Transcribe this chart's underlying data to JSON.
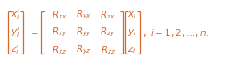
{
  "text_color": "#d4692a",
  "background_color": "#ffffff",
  "figsize": [
    2.75,
    0.74
  ],
  "dpi": 100,
  "left_vec": [
    "x_i'",
    "y_i'",
    "z_i'"
  ],
  "matrix_row1": [
    "R_{xx}",
    "R_{yx}",
    "R_{zx}"
  ],
  "matrix_row2": [
    "R_{xy}",
    "R_{yy}",
    "R_{zy}"
  ],
  "matrix_row3": [
    "R_{xz}",
    "R_{yz}",
    "R_{zz}"
  ],
  "right_vec": [
    "x_i",
    "y_i",
    "z_i"
  ],
  "index_label": "i = 1, 2, \\ldots, n.",
  "fontsize": 7.5
}
